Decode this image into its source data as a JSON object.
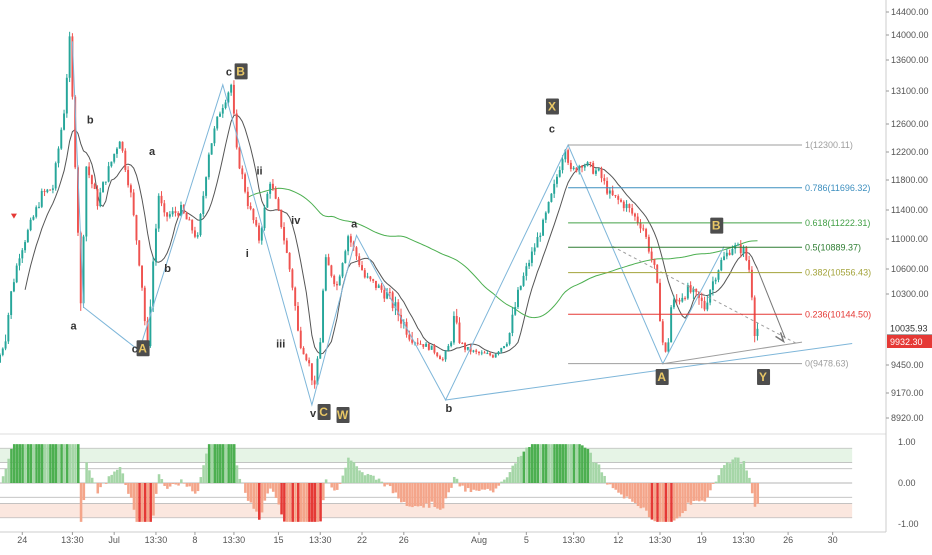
{
  "colors": {
    "up": "#26a69a",
    "down": "#ef5350",
    "sma_long": "#4caf50",
    "ma_fast": "#555555",
    "trendline": "#7eb6d9",
    "fib_1": "#9e9e9e",
    "fib_786": "#3d8fbf",
    "fib_618": "#43a047",
    "fib_5": "#2e7d32",
    "fib_382": "#a3a33a",
    "fib_236": "#e53935",
    "fib_0": "#9e9e9e",
    "wave_label_bg": "#4d4d4d",
    "wave_label_gold": "#e8c766",
    "osc_pos": "#a5d6a7",
    "osc_neg": "#f4a58a",
    "osc_pos_strong": "#4caf50",
    "osc_neg_strong": "#e53935",
    "price_tag_red": "#e53935",
    "price_tag_gray": "#555555"
  },
  "chart_data": {
    "type": "candlestick",
    "title": "",
    "instrument_note": "",
    "x_ticks": [
      "24",
      "13:30",
      "Jul",
      "13:30",
      "8",
      "13:30",
      "15",
      "13:30",
      "22",
      "26",
      "Aug",
      "5",
      "13:30",
      "12",
      "13:30",
      "19",
      "13:30",
      "26",
      "30"
    ],
    "y_ticks": [
      "14400.00",
      "14000.00",
      "13600.00",
      "13100.00",
      "12600.00",
      "12200.00",
      "11800.00",
      "11400.00",
      "11000.00",
      "10600.00",
      "10300.00",
      "9932.30",
      "9450.00",
      "9170.00",
      "8920.00"
    ],
    "ylim": [
      8700,
      14600
    ],
    "y_scale": "log",
    "grid": false,
    "price_tags": [
      {
        "label": "10035.93",
        "value": 10035.93,
        "style": "red"
      },
      {
        "label": "02:45:34",
        "value": 9985,
        "style": "gray"
      },
      {
        "label": "9932.30",
        "value": 9932.3,
        "style": "red"
      }
    ],
    "price_path_keypoints": [
      {
        "t": 0,
        "p": 9500
      },
      {
        "t": 4,
        "p": 10800
      },
      {
        "t": 8,
        "p": 11600
      },
      {
        "t": 10,
        "p": 11700
      },
      {
        "t": 12,
        "p": 12800
      },
      {
        "t": 13,
        "p": 13900
      },
      {
        "t": 15,
        "p": 10200
      },
      {
        "t": 16,
        "p": 12000
      },
      {
        "t": 18,
        "p": 11500
      },
      {
        "t": 22,
        "p": 12400
      },
      {
        "t": 24,
        "p": 11600
      },
      {
        "t": 27,
        "p": 9800
      },
      {
        "t": 29,
        "p": 11600
      },
      {
        "t": 30,
        "p": 11300
      },
      {
        "t": 33,
        "p": 11400
      },
      {
        "t": 36,
        "p": 11000
      },
      {
        "t": 38,
        "p": 12200
      },
      {
        "t": 40,
        "p": 12800
      },
      {
        "t": 42,
        "p": 13200
      },
      {
        "t": 43,
        "p": 12200
      },
      {
        "t": 45,
        "p": 11500
      },
      {
        "t": 47,
        "p": 11000
      },
      {
        "t": 49,
        "p": 11800
      },
      {
        "t": 51,
        "p": 11200
      },
      {
        "t": 54,
        "p": 10000
      },
      {
        "t": 57,
        "p": 9200
      },
      {
        "t": 59,
        "p": 10700
      },
      {
        "t": 61,
        "p": 10400
      },
      {
        "t": 63,
        "p": 11050
      },
      {
        "t": 66,
        "p": 10500
      },
      {
        "t": 70,
        "p": 10300
      },
      {
        "t": 74,
        "p": 10000
      },
      {
        "t": 78,
        "p": 9800
      },
      {
        "t": 80,
        "p": 9560
      },
      {
        "t": 82,
        "p": 10100
      },
      {
        "t": 84,
        "p": 9800
      },
      {
        "t": 86,
        "p": 9700
      },
      {
        "t": 89,
        "p": 9650
      },
      {
        "t": 92,
        "p": 10000
      },
      {
        "t": 95,
        "p": 10600
      },
      {
        "t": 98,
        "p": 11200
      },
      {
        "t": 100,
        "p": 11700
      },
      {
        "t": 102,
        "p": 12300
      },
      {
        "t": 103,
        "p": 11900
      },
      {
        "t": 105,
        "p": 12050
      },
      {
        "t": 108,
        "p": 11900
      },
      {
        "t": 110,
        "p": 11600
      },
      {
        "t": 113,
        "p": 11450
      },
      {
        "t": 116,
        "p": 11150
      },
      {
        "t": 118,
        "p": 10600
      },
      {
        "t": 120,
        "p": 9700
      },
      {
        "t": 121,
        "p": 10200
      },
      {
        "t": 124,
        "p": 10350
      },
      {
        "t": 127,
        "p": 10200
      },
      {
        "t": 130,
        "p": 10700
      },
      {
        "t": 132,
        "p": 10900
      },
      {
        "t": 134,
        "p": 10850
      },
      {
        "t": 135,
        "p": 10600
      },
      {
        "t": 136,
        "p": 10036
      }
    ],
    "fib_levels": [
      {
        "ratio": "1",
        "label": "1(12300.11)",
        "price": 12300.11
      },
      {
        "ratio": "0.786",
        "label": "0.786(11696.32)",
        "price": 11696.32
      },
      {
        "ratio": "0.618",
        "label": "0.618(11222.31)",
        "price": 11222.31
      },
      {
        "ratio": "0.5",
        "label": "0.5(10889.37)",
        "price": 10889.37
      },
      {
        "ratio": "0.382",
        "label": "0.382(10556.43)",
        "price": 10556.43
      },
      {
        "ratio": "0.236",
        "label": "0.236(10144.50)",
        "price": 10144.5
      },
      {
        "ratio": "0",
        "label": "0(9478.63)",
        "price": 9478.63
      }
    ],
    "wave_labels": [
      {
        "text": "a",
        "t": 13.2,
        "p": 10050,
        "boxed": false
      },
      {
        "text": "b",
        "t": 16.2,
        "p": 12650,
        "boxed": false
      },
      {
        "text": "c",
        "t": 24.2,
        "p": 9780,
        "boxed": false
      },
      {
        "text": "A",
        "t": 25.6,
        "p": 9780,
        "boxed": true
      },
      {
        "text": "a",
        "t": 27.3,
        "p": 12200,
        "boxed": false
      },
      {
        "text": "b",
        "t": 30.1,
        "p": 10600,
        "boxed": false
      },
      {
        "text": "c",
        "t": 41.1,
        "p": 13400,
        "boxed": false
      },
      {
        "text": "B",
        "t": 43.2,
        "p": 13400,
        "boxed": true
      },
      {
        "text": "ii",
        "t": 46.6,
        "p": 11920,
        "boxed": false
      },
      {
        "text": "i",
        "t": 44.4,
        "p": 10800,
        "boxed": false
      },
      {
        "text": "iv",
        "t": 53.1,
        "p": 11250,
        "boxed": false
      },
      {
        "text": "iii",
        "t": 50.4,
        "p": 9880,
        "boxed": false
      },
      {
        "text": "a",
        "t": 63.6,
        "p": 11200,
        "boxed": false
      },
      {
        "text": "v",
        "t": 56.2,
        "p": 8960,
        "boxed": false
      },
      {
        "text": "C",
        "t": 58.1,
        "p": 8970,
        "boxed": true
      },
      {
        "text": "W",
        "t": 61.5,
        "p": 8940,
        "boxed": true
      },
      {
        "text": "b",
        "t": 80.6,
        "p": 9010,
        "boxed": false
      },
      {
        "text": "X",
        "t": 99.1,
        "p": 12850,
        "boxed": true
      },
      {
        "text": "c",
        "t": 99.1,
        "p": 12520,
        "boxed": false
      },
      {
        "text": "B",
        "t": 128.6,
        "p": 11170,
        "boxed": true
      },
      {
        "text": "A",
        "t": 118.8,
        "p": 9320,
        "boxed": true
      },
      {
        "text": "Y",
        "t": 137.0,
        "p": 9320,
        "boxed": true
      }
    ],
    "oscillator": {
      "ylim": [
        -1.1,
        1.1
      ],
      "y_ticks": [
        "1.00",
        "0.00",
        "-1.00"
      ],
      "bands": [
        0.85,
        0.5,
        0.35,
        -0.35,
        -0.5,
        -0.85
      ]
    }
  }
}
